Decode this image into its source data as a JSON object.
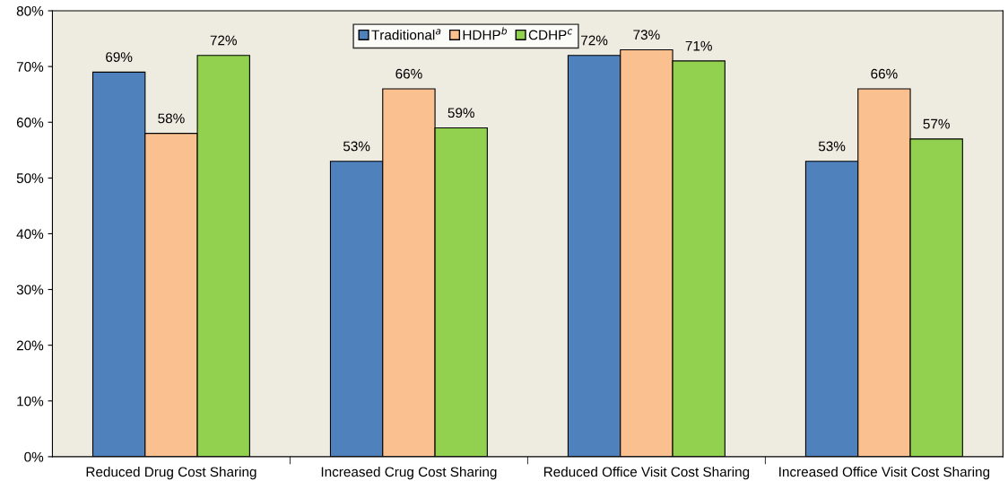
{
  "chart_data": {
    "type": "bar",
    "categories": [
      "Reduced Drug Cost Sharing",
      "Increased Crug Cost Sharing",
      "Reduced Office Visit Cost Sharing",
      "Increased Office Visit Cost Sharing"
    ],
    "series": [
      {
        "name": "Traditional$^{a}$",
        "color": "#4f81bd",
        "values": [
          69,
          53,
          72,
          53
        ],
        "value_labels": [
          "69%",
          "53%",
          "72%",
          "53%"
        ]
      },
      {
        "name": "HDHP$^{b}$",
        "color": "#fac090",
        "values": [
          58,
          66,
          73,
          66
        ],
        "value_labels": [
          "58%",
          "66%",
          "73%",
          "66%"
        ]
      },
      {
        "name": "CDHP$^{c}$",
        "color": "#92d050",
        "values": [
          72,
          59,
          71,
          57
        ],
        "value_labels": [
          "72%",
          "59%",
          "71%",
          "57%"
        ]
      }
    ],
    "ylim": [
      0,
      80
    ],
    "yticks": [
      {
        "value": 0,
        "label": "0%"
      },
      {
        "value": 10,
        "label": "10%"
      },
      {
        "value": 20,
        "label": "20%"
      },
      {
        "value": 30,
        "label": "30%"
      },
      {
        "value": 40,
        "label": "40%"
      },
      {
        "value": 50,
        "label": "50%"
      },
      {
        "value": 60,
        "label": "60%"
      },
      {
        "value": 70,
        "label": "70%"
      },
      {
        "value": 80,
        "label": "80%"
      }
    ],
    "grid": false,
    "legend": "top"
  }
}
